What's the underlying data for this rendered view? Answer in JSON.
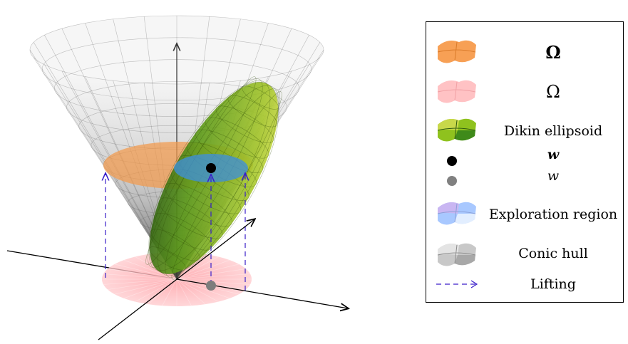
{
  "legend": {
    "items": [
      {
        "label": "Ω",
        "style": "bold",
        "color": "#f7a055"
      },
      {
        "label": "Ω",
        "style": "regular",
        "color": "#ffc2c4"
      },
      {
        "label": "Dikin ellipsoid",
        "style": "regular",
        "color": "#8fc21e"
      },
      {
        "label": "w",
        "style": "bold-italic",
        "color": "#000000"
      },
      {
        "label": "w",
        "style": "italic",
        "color": "#808080"
      },
      {
        "label": "Exploration region",
        "style": "regular",
        "color": "#a8c8ff"
      },
      {
        "label": "Conic hull",
        "style": "regular",
        "color": "#c8c8c8"
      },
      {
        "label": "Lifting",
        "style": "regular",
        "color": "#3a1fc9"
      }
    ]
  },
  "colors": {
    "cone": "#b4b4b4",
    "omega_lifted": "#f4a35a",
    "omega_base": "#ffb8bc",
    "ellipsoid": "#8cc11a",
    "exploration": "#4f9ad8",
    "lifting_arrow": "#3a1fc9",
    "point_lifted": "#000000",
    "point_base": "#7d7d7d"
  }
}
